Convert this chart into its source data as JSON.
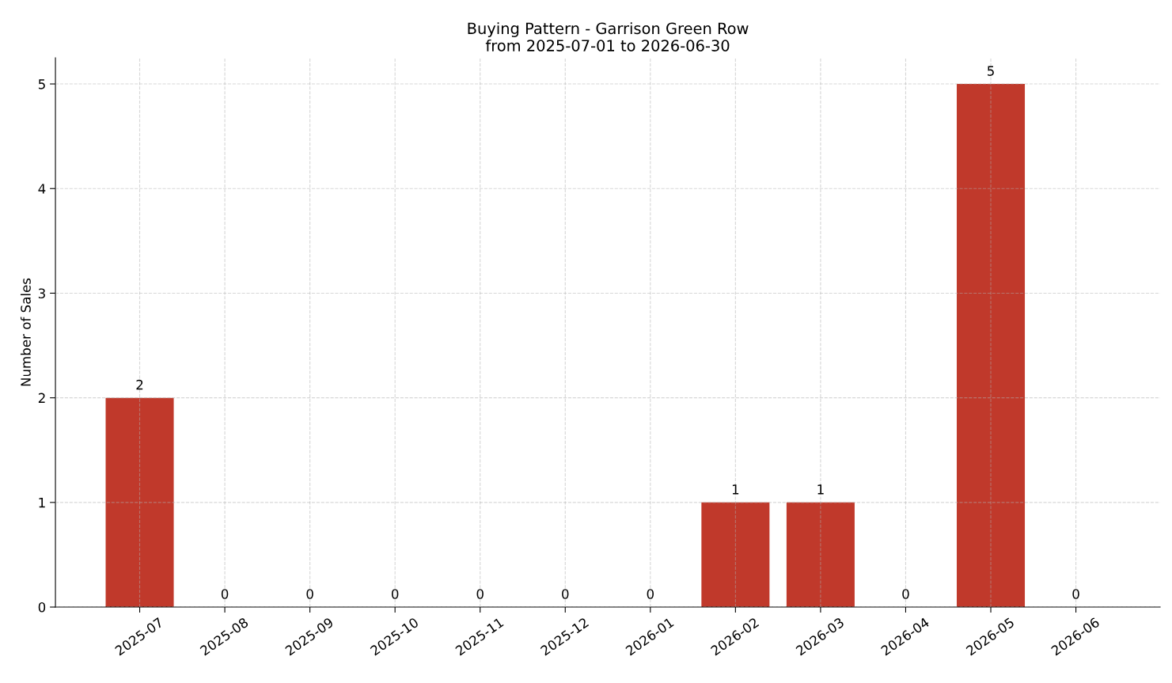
{
  "chart_data": {
    "type": "bar",
    "title": "Buying Pattern - Garrison Green Row\nfrom 2025-07-01 to 2026-06-30",
    "ylabel": "Number of Sales",
    "categories": [
      "2025-07",
      "2025-08",
      "2025-09",
      "2025-10",
      "2025-11",
      "2025-12",
      "2026-01",
      "2026-02",
      "2026-03",
      "2026-04",
      "2026-05",
      "2026-06"
    ],
    "values": [
      2,
      0,
      0,
      0,
      0,
      0,
      0,
      1,
      1,
      0,
      5,
      0
    ],
    "color": "#c0392b",
    "ylim": [
      0,
      5.25
    ],
    "yticks": [
      0,
      1,
      2,
      3,
      4,
      5
    ],
    "grid": true,
    "data_labels": true
  }
}
